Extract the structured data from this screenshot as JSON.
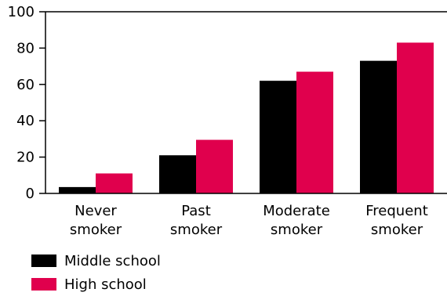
{
  "chart_data": {
    "type": "bar",
    "categories": [
      [
        "Never",
        "smoker"
      ],
      [
        "Past",
        "smoker"
      ],
      [
        "Moderate",
        "smoker"
      ],
      [
        "Frequent",
        "smoker"
      ]
    ],
    "series": [
      {
        "name": "Middle school",
        "color": "#000000",
        "values": [
          3.5,
          21,
          62,
          73
        ]
      },
      {
        "name": "High school",
        "color": "#e0004d",
        "values": [
          11,
          29.5,
          67,
          83
        ]
      }
    ],
    "yticks": [
      "0",
      "20",
      "40",
      "60",
      "80",
      "100"
    ],
    "ylim": [
      0,
      100
    ],
    "grid": false,
    "legend_position": "bottom-left"
  }
}
